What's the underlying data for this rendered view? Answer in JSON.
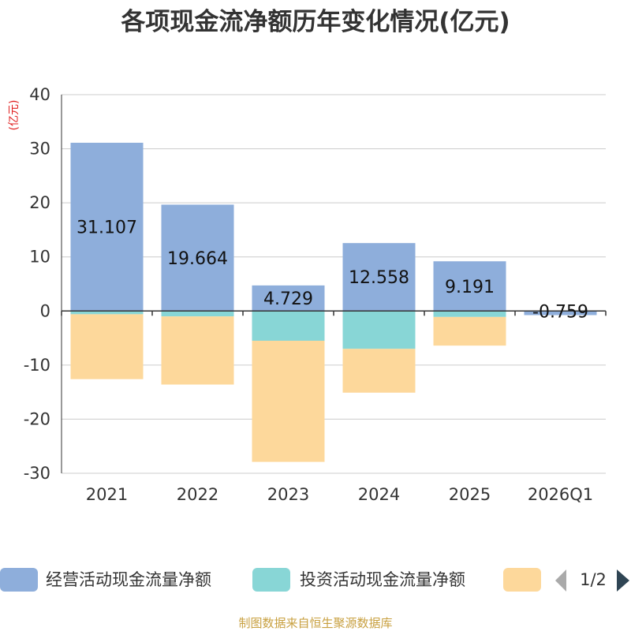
{
  "chart_data": {
    "type": "bar",
    "stacked": true,
    "title": "各项现金流净额历年变化情况(亿元)",
    "ylabel": "(亿元)",
    "xlabel": "",
    "ylim": [
      -30,
      40
    ],
    "yticks": [
      40,
      30,
      20,
      10,
      0,
      -10,
      -20,
      -30
    ],
    "categories": [
      "2021",
      "2022",
      "2023",
      "2024",
      "2025",
      "2026Q1"
    ],
    "series": [
      {
        "name": "经营活动现金流量净额",
        "color": "#8eaedb",
        "values": [
          31.107,
          19.664,
          4.729,
          12.558,
          9.191,
          -0.759
        ],
        "labels": [
          "31.107",
          "19.664",
          "4.729",
          "12.558",
          "9.191",
          "-0.759"
        ]
      },
      {
        "name": "投资活动现金流量净额",
        "color": "#88d6d6",
        "values": [
          -0.6,
          -1.0,
          -5.5,
          -7.0,
          -1.1,
          0
        ]
      },
      {
        "name": "",
        "color": "#fdd89b",
        "values": [
          -12.0,
          -12.6,
          -22.4,
          -8.1,
          -5.3,
          0
        ]
      }
    ],
    "legend": {
      "position": "bottom",
      "page": "1/2"
    }
  },
  "footer": "制图数据来自恒生聚源数据库"
}
